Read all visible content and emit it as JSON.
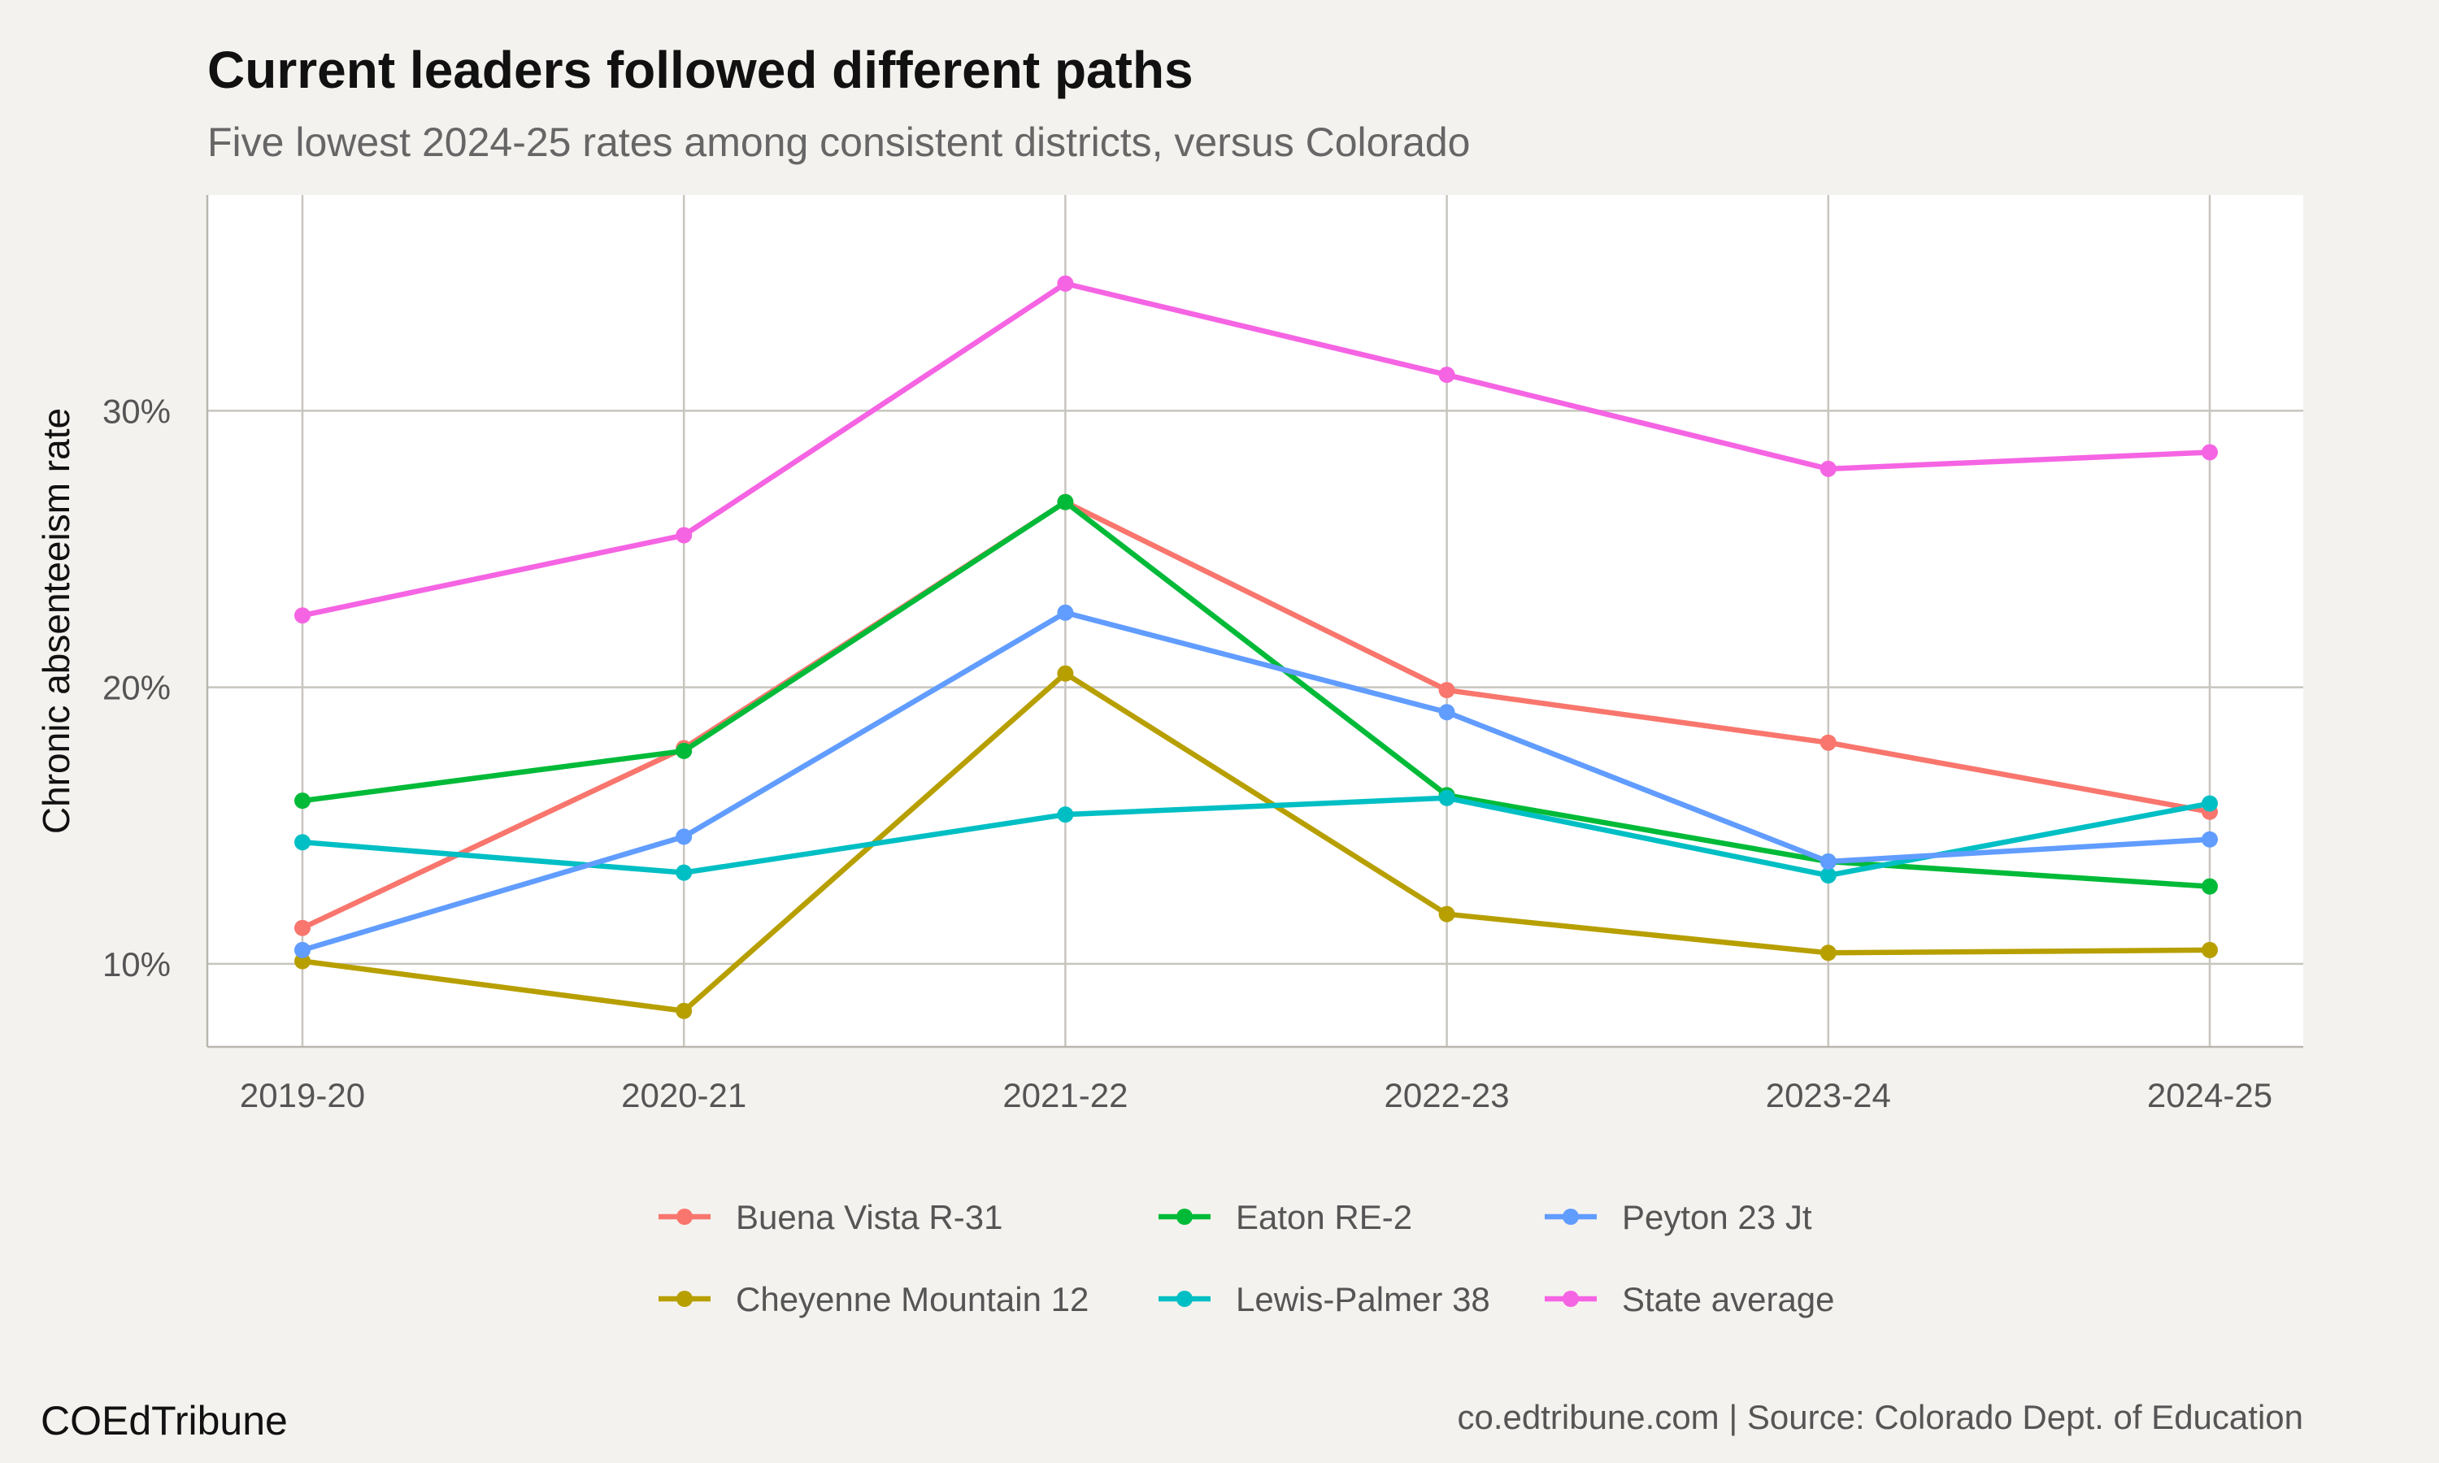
{
  "chart_data": {
    "type": "line",
    "title": "Current leaders followed different paths",
    "subtitle": "Five lowest 2024-25 rates among consistent districts, versus Colorado",
    "xlabel": "",
    "ylabel": "Chronic absenteeism rate",
    "categories": [
      "2019-20",
      "2020-21",
      "2021-22",
      "2022-23",
      "2023-24",
      "2024-25"
    ],
    "ylim": [
      7,
      37.8
    ],
    "yticks": [
      10,
      20,
      30
    ],
    "ytick_labels": [
      "10%",
      "20%",
      "30%"
    ],
    "grid": true,
    "legend_position": "bottom",
    "series": [
      {
        "name": "Buena Vista R-31",
        "color": "#F8766D",
        "values": [
          11.3,
          17.8,
          26.7,
          19.9,
          18.0,
          15.5
        ]
      },
      {
        "name": "Cheyenne Mountain 12",
        "color": "#B79F00",
        "values": [
          10.1,
          8.3,
          20.5,
          11.8,
          10.4,
          10.5
        ]
      },
      {
        "name": "Eaton RE-2",
        "color": "#00BA38",
        "values": [
          15.9,
          17.7,
          26.7,
          16.1,
          13.7,
          12.8
        ]
      },
      {
        "name": "Lewis-Palmer 38",
        "color": "#00BFC4",
        "values": [
          14.4,
          13.3,
          15.4,
          16.0,
          13.2,
          15.8
        ]
      },
      {
        "name": "Peyton 23 Jt",
        "color": "#619CFF",
        "values": [
          10.5,
          14.6,
          22.7,
          19.1,
          13.7,
          14.5
        ]
      },
      {
        "name": "State average",
        "color": "#F564E3",
        "values": [
          22.6,
          25.5,
          34.6,
          31.3,
          27.9,
          28.5
        ]
      }
    ]
  },
  "footer": {
    "brand": "COEdTribune",
    "source": "co.edtribune.com | Source: Colorado Dept. of Education"
  }
}
